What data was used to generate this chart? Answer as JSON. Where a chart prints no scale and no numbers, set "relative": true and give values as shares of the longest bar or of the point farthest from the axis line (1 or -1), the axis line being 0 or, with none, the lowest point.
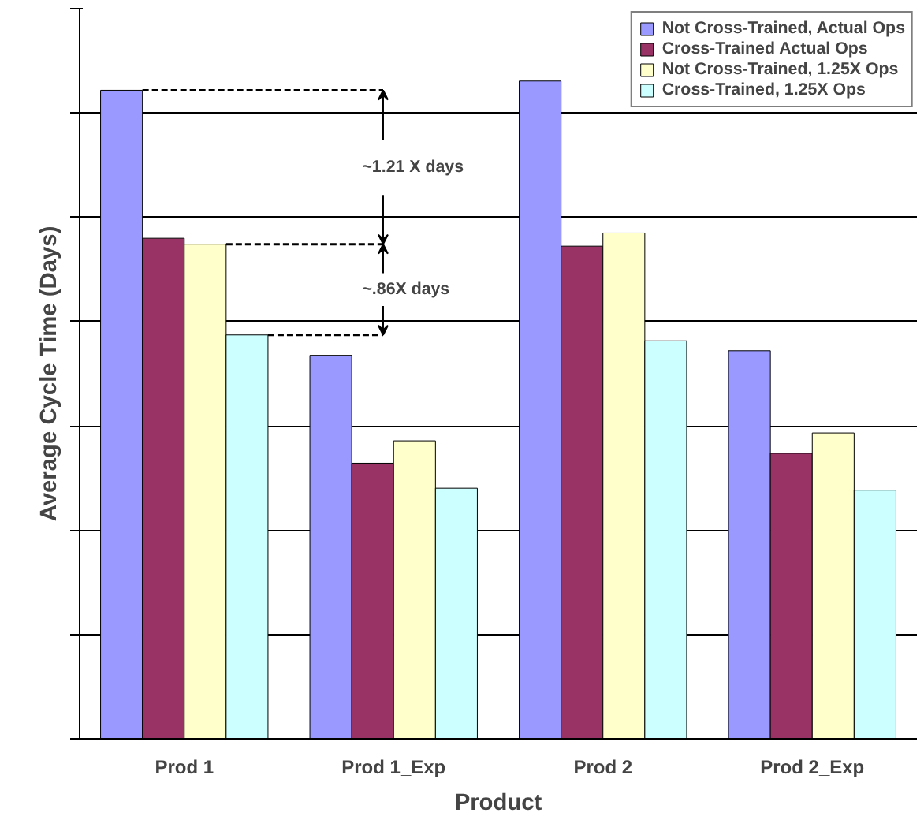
{
  "chart_data": {
    "type": "bar",
    "relative": true,
    "xlabel": "Product",
    "ylabel": "Average Cycle Time (Days)",
    "categories": [
      "Prod 1",
      "Prod 1_Exp",
      "Prod 2",
      "Prod 2_Exp"
    ],
    "series": [
      {
        "name": "Not Cross-Trained, Actual Ops",
        "color": "#9999ff",
        "values": [
          0.986,
          0.583,
          1,
          0.59
        ]
      },
      {
        "name": "Cross-Trained Actual Ops",
        "color": "#993366",
        "values": [
          0.761,
          0.419,
          0.749,
          0.434
        ]
      },
      {
        "name": "Not Cross-Trained, 1.25X Ops",
        "color": "#ffffcc",
        "values": [
          0.752,
          0.453,
          0.769,
          0.465
        ]
      },
      {
        "name": "Cross-Trained, 1.25X Ops",
        "color": "#ccffff",
        "values": [
          0.614,
          0.381,
          0.605,
          0.378
        ]
      }
    ],
    "annotations": [
      "~1.21 X days",
      "~.86X days"
    ],
    "grid": "y",
    "legend": "top right"
  }
}
